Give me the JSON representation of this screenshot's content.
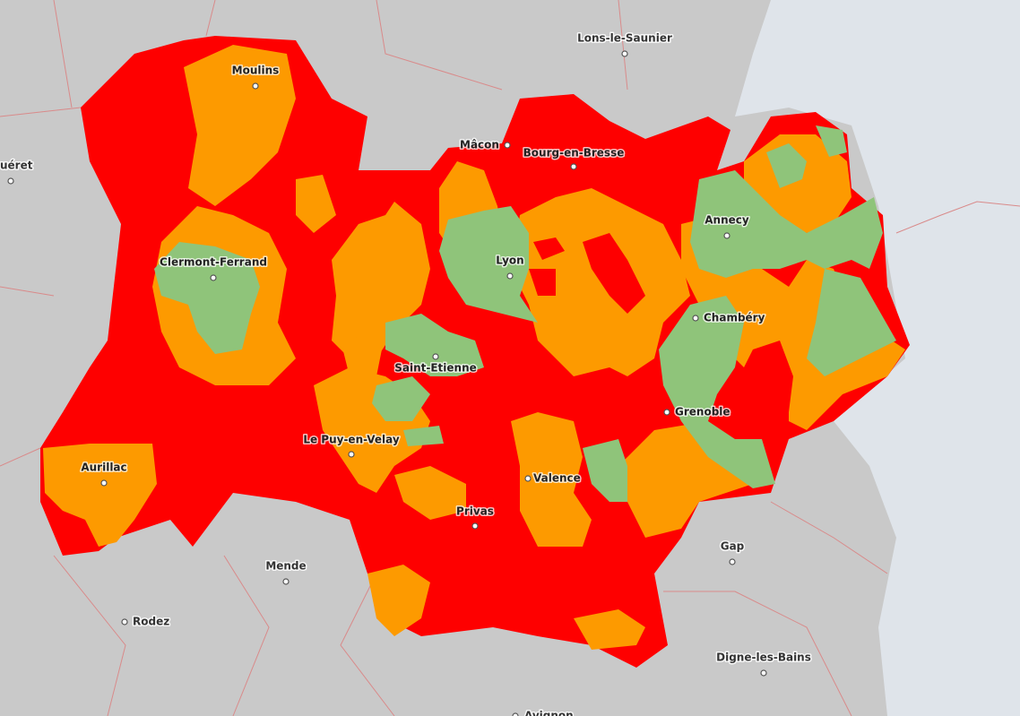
{
  "map": {
    "cities": [
      "Lons-le-Saunier",
      "Moulins",
      "Mâcon",
      "Bourg-en-Bresse",
      "uéret",
      "Annecy",
      "Clermont-Ferrand",
      "Lyon",
      "Chambéry",
      "Saint-Etienne",
      "Grenoble",
      "Le Puy-en-Velay",
      "Aurillac",
      "Valence",
      "Privas",
      "Gap",
      "Mende",
      "Rodez",
      "Digne-les-Bains",
      "Avignon"
    ]
  }
}
